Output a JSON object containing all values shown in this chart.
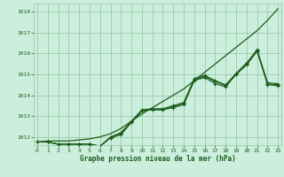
{
  "bg_color": "#cceedd",
  "grid_color": "#99ccaa",
  "line_color": "#1a5c1a",
  "marker_color": "#1a5c1a",
  "title": "Graphe pression niveau de la mer (hPa)",
  "title_color": "#1a5c1a",
  "xlim": [
    -0.3,
    23.3
  ],
  "ylim": [
    1011.6,
    1018.4
  ],
  "yticks": [
    1012,
    1013,
    1014,
    1015,
    1016,
    1017,
    1018
  ],
  "xticks": [
    0,
    1,
    2,
    3,
    4,
    5,
    6,
    7,
    8,
    9,
    10,
    11,
    12,
    13,
    14,
    15,
    16,
    17,
    18,
    19,
    20,
    21,
    22,
    23
  ],
  "series_with_markers": [
    [
      1011.75,
      1011.75,
      1011.65,
      1011.65,
      1011.65,
      1011.65,
      1011.55,
      1011.95,
      1012.1,
      1012.7,
      1013.25,
      1013.3,
      1013.3,
      1013.4,
      1013.55,
      1014.7,
      1014.85,
      1014.55,
      1014.4,
      1015.0,
      1015.45,
      1016.1,
      1014.5,
      1014.45
    ],
    [
      1011.75,
      1011.75,
      1011.65,
      1011.65,
      1011.65,
      1011.65,
      1011.55,
      1011.95,
      1012.15,
      1012.7,
      1013.25,
      1013.3,
      1013.3,
      1013.45,
      1013.6,
      1014.75,
      1014.9,
      1014.65,
      1014.45,
      1015.0,
      1015.5,
      1016.2,
      1014.55,
      1014.5
    ],
    [
      1011.75,
      1011.75,
      1011.65,
      1011.65,
      1011.65,
      1011.65,
      1011.55,
      1012.0,
      1012.2,
      1012.75,
      1013.3,
      1013.35,
      1013.35,
      1013.5,
      1013.65,
      1014.8,
      1014.95,
      1014.7,
      1014.5,
      1015.05,
      1015.55,
      1016.15,
      1014.6,
      1014.55
    ]
  ],
  "series_smooth": [
    1011.75,
    1011.8,
    1011.8,
    1011.8,
    1011.85,
    1011.9,
    1012.0,
    1012.15,
    1012.4,
    1012.75,
    1013.1,
    1013.4,
    1013.7,
    1014.0,
    1014.3,
    1014.7,
    1015.1,
    1015.5,
    1015.9,
    1016.3,
    1016.7,
    1017.1,
    1017.6,
    1018.15
  ]
}
